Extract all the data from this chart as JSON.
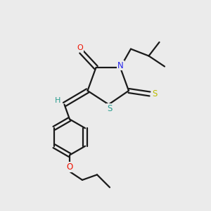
{
  "bg_color": "#ebebeb",
  "bond_color": "#1a1a1a",
  "colors": {
    "O": "#ee1100",
    "N": "#2222ee",
    "S_thioxo": "#bbbb00",
    "S_ring": "#2a9d8f",
    "H": "#2a9d8f",
    "C": "#1a1a1a"
  }
}
